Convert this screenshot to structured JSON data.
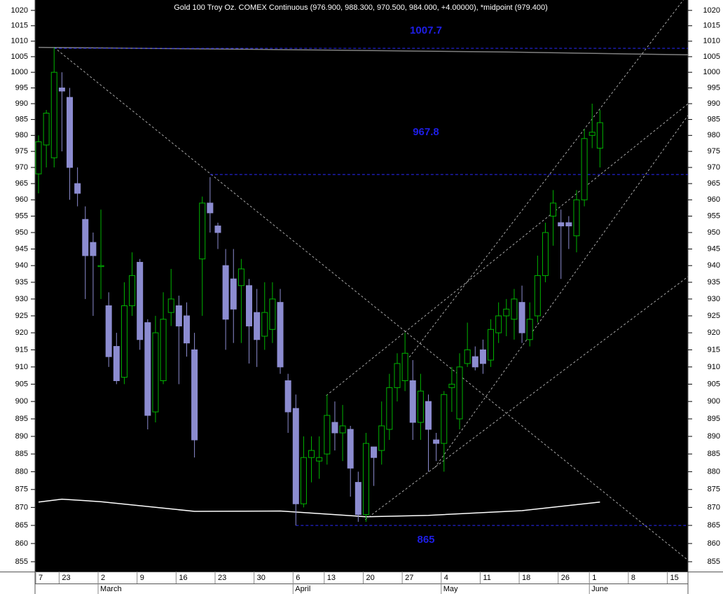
{
  "chart_data": {
    "type": "candlestick",
    "title": "Gold 100 Troy Oz. COMEX Continuous (976.900, 988.300, 970.500, 984.000, +4.00000), *midpoint (979.400)",
    "log_scale": true,
    "ylim": [
      852.5,
      1023.4
    ],
    "yticks": [
      855,
      860,
      865,
      870,
      875,
      880,
      885,
      890,
      895,
      900,
      905,
      910,
      915,
      920,
      925,
      930,
      935,
      940,
      945,
      950,
      955,
      960,
      965,
      970,
      975,
      980,
      985,
      990,
      995,
      1000,
      1005,
      1010,
      1015,
      1020
    ],
    "up_color": "#00b400",
    "down_color": "#8c8cd0",
    "open": [
      968,
      977,
      973,
      995,
      992,
      965,
      954,
      947,
      940,
      928,
      916,
      907,
      928,
      941,
      923,
      897,
      906,
      926,
      928,
      925,
      915,
      942,
      959,
      952,
      940,
      936,
      934,
      934,
      926,
      919,
      921,
      929,
      906,
      898,
      871,
      884,
      883,
      885,
      894,
      891,
      892,
      877,
      868,
      887,
      886,
      892,
      904,
      906,
      906,
      894,
      900,
      889,
      888,
      904,
      895,
      911,
      913,
      915,
      912,
      920,
      925,
      924,
      929,
      918,
      925,
      937,
      955,
      953,
      953,
      949,
      960,
      980,
      976
    ],
    "high": [
      980,
      988,
      1008,
      1000,
      995,
      970,
      958,
      950,
      957,
      932,
      920,
      935,
      944,
      942,
      924,
      925,
      932,
      939,
      931,
      929,
      920,
      961,
      967,
      953,
      945,
      945,
      942,
      936,
      933,
      935,
      935,
      933,
      908,
      902,
      890,
      890,
      890,
      902,
      900,
      899,
      893,
      880,
      891,
      887,
      900,
      908,
      914,
      920,
      912,
      908,
      902,
      891,
      903,
      910,
      914,
      923,
      916,
      918,
      924,
      929,
      930,
      933,
      934,
      929,
      943,
      953,
      963,
      957,
      955,
      963,
      982,
      990,
      988
    ],
    "low": [
      962,
      970,
      970,
      975,
      960,
      958,
      930,
      925,
      930,
      910,
      905,
      905,
      925,
      915,
      892,
      894,
      905,
      922,
      905,
      913,
      884,
      925,
      950,
      945,
      915,
      917,
      917,
      911,
      910,
      915,
      917,
      908,
      891,
      865,
      870,
      877,
      878,
      882,
      886,
      883,
      873,
      866,
      866,
      876,
      882,
      889,
      900,
      903,
      889,
      889,
      880,
      883,
      880,
      897,
      892,
      910,
      909,
      908,
      910,
      917,
      919,
      918,
      917,
      916,
      923,
      935,
      946,
      936,
      945,
      944,
      958,
      976,
      970
    ],
    "close": [
      978,
      987,
      1000,
      994,
      970,
      962,
      943,
      943,
      940,
      913,
      906,
      928,
      937,
      918,
      896,
      920,
      924,
      930,
      922,
      917,
      889,
      959,
      956,
      950,
      924,
      927,
      939,
      922,
      918,
      926,
      930,
      910,
      897,
      871,
      884,
      886,
      884,
      896,
      891,
      893,
      881,
      868,
      888,
      884,
      893,
      904,
      911,
      914,
      894,
      903,
      892,
      888,
      902,
      905,
      910,
      915,
      910,
      911,
      921,
      925,
      927,
      930,
      920,
      924,
      937,
      950,
      959,
      952,
      952,
      960,
      979,
      981,
      984
    ],
    "xticks": [
      {
        "value": 0,
        "label": "7"
      },
      {
        "value": 3,
        "label": "23"
      },
      {
        "value": 8,
        "label": "2"
      },
      {
        "value": 13,
        "label": "9"
      },
      {
        "value": 18,
        "label": "16"
      },
      {
        "value": 23,
        "label": "23"
      },
      {
        "value": 28,
        "label": "30"
      },
      {
        "value": 33,
        "label": "6"
      },
      {
        "value": 37,
        "label": "13"
      },
      {
        "value": 42,
        "label": "20"
      },
      {
        "value": 47,
        "label": "27"
      },
      {
        "value": 52,
        "label": "4"
      },
      {
        "value": 57,
        "label": "11"
      },
      {
        "value": 62,
        "label": "18"
      },
      {
        "value": 67,
        "label": "26"
      },
      {
        "value": 71,
        "label": "1"
      },
      {
        "value": 76,
        "label": "8"
      },
      {
        "value": 81,
        "label": "15"
      }
    ],
    "months": [
      {
        "value": 8,
        "label": "March"
      },
      {
        "value": 33,
        "label": "April"
      },
      {
        "value": 52,
        "label": "May"
      },
      {
        "value": 71,
        "label": "June"
      }
    ],
    "levels": [
      {
        "value": 1007.7,
        "from": 2
      },
      {
        "value": 967.8,
        "from": 22
      },
      {
        "value": 865,
        "from": 33
      }
    ],
    "trendlines": [
      [
        2,
        1008,
        83.3,
        855.4
      ],
      [
        36.9,
        901.7,
        83.3,
        990
      ],
      [
        41.9,
        866.6,
        83.3,
        936.7
      ],
      [
        50.8,
        881.1,
        83.3,
        986.3
      ],
      [
        46.9,
        910.9,
        82.7,
        1023.4
      ]
    ],
    "moving_averages": [
      {
        "color": "#808080",
        "x": [
          0,
          30,
          60,
          83.3
        ],
        "values": [
          1008,
          1007.3,
          1006.5,
          1005.6
        ]
      },
      {
        "color": "#ffffff",
        "x": [
          0,
          3,
          8,
          20,
          31,
          42,
          50,
          62,
          72
        ],
        "values": [
          871.5,
          872.3,
          871.6,
          868.9,
          869,
          867.4,
          867.8,
          869.1,
          871.5
        ]
      }
    ]
  }
}
